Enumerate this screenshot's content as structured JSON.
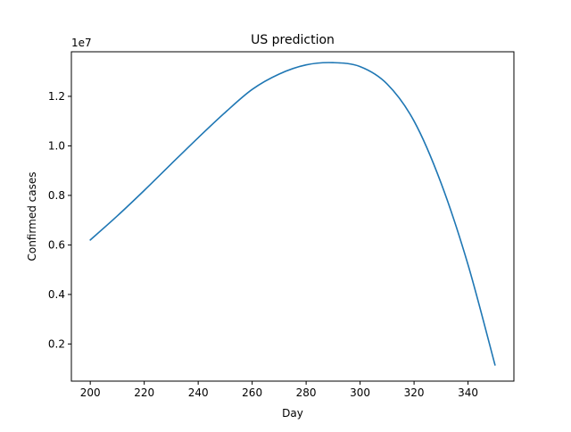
{
  "chart_data": {
    "type": "line",
    "title": "US prediction",
    "xlabel": "Day",
    "ylabel": "Confirmed cases",
    "y_offset_label": "1e7",
    "xlim": [
      193,
      357
    ],
    "ylim": [
      0.05,
      1.38
    ],
    "x_ticks": [
      200,
      220,
      240,
      260,
      280,
      300,
      320,
      340
    ],
    "x_tick_labels": [
      "200",
      "220",
      "240",
      "260",
      "280",
      "300",
      "320",
      "340"
    ],
    "y_ticks": [
      0.2,
      0.4,
      0.6,
      0.8,
      1.0,
      1.2
    ],
    "y_tick_labels": [
      "0.2",
      "0.4",
      "0.6",
      "0.8",
      "1.0",
      "1.2"
    ],
    "grid": false,
    "legend": null,
    "series": [
      {
        "color": "#1f77b4",
        "x": [
          200,
          210,
          220,
          230,
          240,
          250,
          260,
          270,
          280,
          290,
          300,
          310,
          320,
          330,
          340,
          350
        ],
        "y": [
          0.62,
          0.717,
          0.82,
          0.927,
          1.033,
          1.135,
          1.228,
          1.29,
          1.327,
          1.336,
          1.32,
          1.25,
          1.1,
          0.85,
          0.52,
          0.115
        ]
      }
    ]
  }
}
